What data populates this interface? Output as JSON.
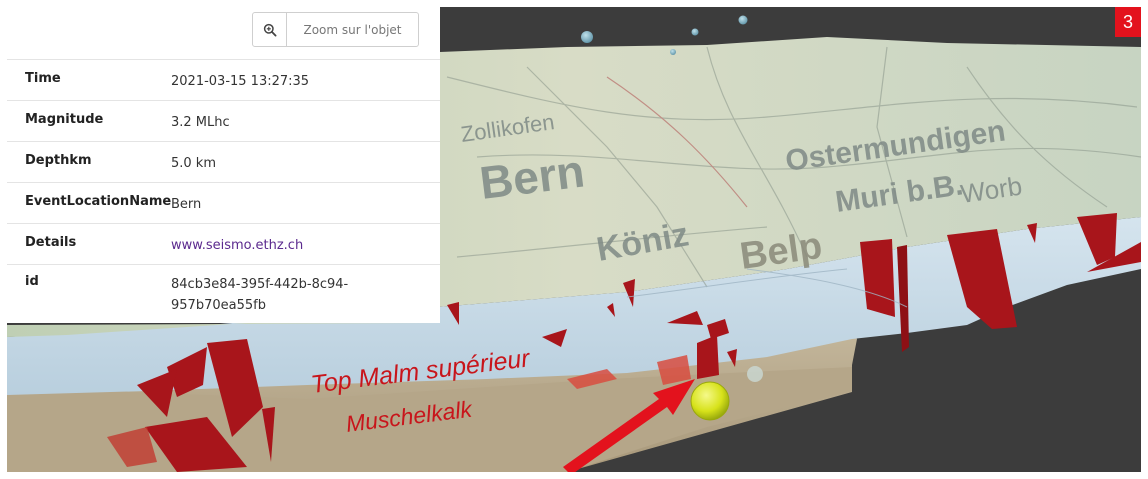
{
  "figure_number": "3",
  "info_panel": {
    "zoom_button_label": "Zoom sur l'objet",
    "zoom_icon": "zoom-in-icon",
    "rows": [
      {
        "key": "Time",
        "value": "2021-03-15 13:27:35"
      },
      {
        "key": "Magnitude",
        "value": "3.2 MLhc"
      },
      {
        "key": "Depthkm",
        "value": "5.0 km"
      },
      {
        "key": "EventLocationName",
        "value": "Bern"
      },
      {
        "key": "Details",
        "value": "www.seismo.ethz.ch"
      },
      {
        "key": "id",
        "value": "84cb3e84-395f-442b-8c94-957b70ea55fb"
      }
    ]
  },
  "scene": {
    "map_labels": [
      "Bern",
      "Belp",
      "Köniz",
      "Zollikofen",
      "Ostermundigen",
      "Muri b.B.",
      "Worb"
    ],
    "layer_label_top": "Top Malm supérieur",
    "layer_label_bottom": "Muschelkalk",
    "colors": {
      "background": "#3c3c3c",
      "malm_layer": "#c9dbe8",
      "muschelkalk_layer": "#b8aa90",
      "fault": "#a8151b",
      "earthquake_marker": "#d7e21a",
      "annotation": "#e3121d"
    }
  }
}
